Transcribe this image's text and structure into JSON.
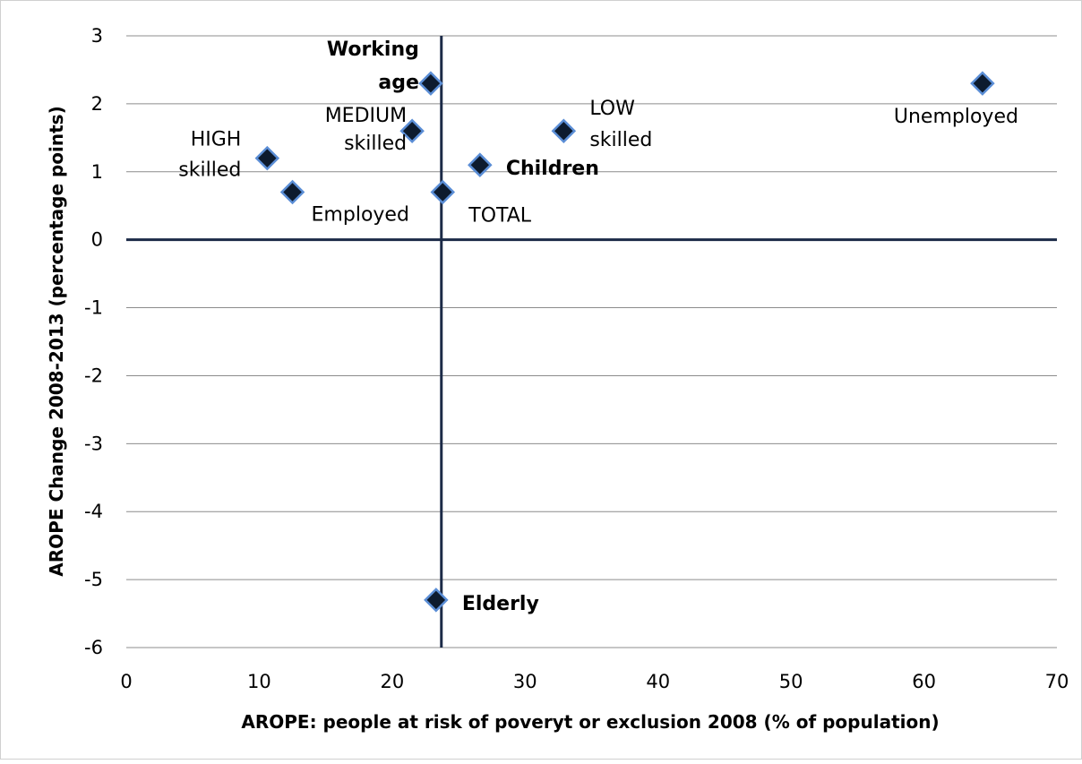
{
  "chart_data": {
    "type": "scatter",
    "xlabel": "AROPE: people at risk of poveryt or exclusion 2008 (% of population)",
    "ylabel": "AROPE Change 2008-2013 (percentage points)",
    "xlim": [
      0,
      70
    ],
    "ylim": [
      -6,
      3
    ],
    "x_ticks": [
      "0",
      "10",
      "20",
      "30",
      "40",
      "50",
      "60",
      "70"
    ],
    "y_ticks": [
      "3",
      "2",
      "1",
      "0",
      "-1",
      "-2",
      "-3",
      "-4",
      "-5",
      "-6"
    ],
    "grid": "horizontal",
    "reference_lines": {
      "x": 23.7,
      "y": 0
    },
    "colors": {
      "marker": "#0d1b2e",
      "marker_edge": "#5b8ed6",
      "axes": "#1b2a47",
      "grid": "#8c8c8c"
    },
    "points": [
      {
        "lines": [
          "Working",
          "age"
        ],
        "x": 22.9,
        "y": 2.3,
        "bold": true
      },
      {
        "lines": [
          "MEDIUM",
          "skilled"
        ],
        "x": 21.5,
        "y": 1.6,
        "bold": false
      },
      {
        "lines": [
          "HIGH",
          "skilled"
        ],
        "x": 10.6,
        "y": 1.2,
        "bold": false
      },
      {
        "lines": [
          "Employed"
        ],
        "x": 12.5,
        "y": 0.7,
        "bold": false
      },
      {
        "lines": [
          "TOTAL"
        ],
        "x": 23.8,
        "y": 0.7,
        "bold": false
      },
      {
        "lines": [
          "Children"
        ],
        "x": 26.6,
        "y": 1.1,
        "bold": true
      },
      {
        "lines": [
          "LOW",
          "skilled"
        ],
        "x": 32.9,
        "y": 1.6,
        "bold": false
      },
      {
        "lines": [
          "Unemployed"
        ],
        "x": 64.4,
        "y": 2.3,
        "bold": false
      },
      {
        "lines": [
          "Elderly"
        ],
        "x": 23.3,
        "y": -5.3,
        "bold": true
      }
    ]
  }
}
